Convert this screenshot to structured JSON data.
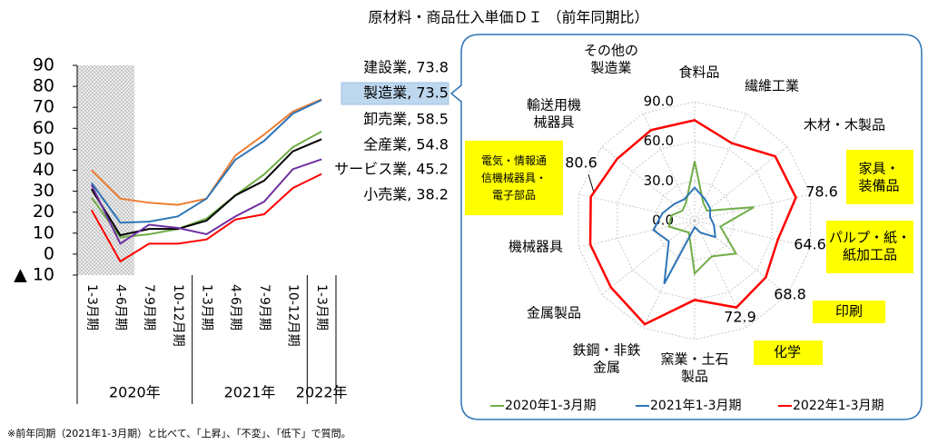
{
  "title": "原材料・商品仕入単価ＤＩ （前年同期比）",
  "footnote": "※前年同期（2021年1-3月期）と比べて、「上昇」、「不変」、「低下」で質問。",
  "chart_data": [
    {
      "type": "line",
      "categories": [
        "1-3月期",
        "4-6月期",
        "7-9月期",
        "10-12月期",
        "1-3月期",
        "4-6月期",
        "7-9月期",
        "10-12月期",
        "1-3月期"
      ],
      "groups": [
        {
          "label": "2020年",
          "start": 0,
          "end": 3
        },
        {
          "label": "2021年",
          "start": 4,
          "end": 7
        },
        {
          "label": "2022年",
          "start": 8,
          "end": 8
        }
      ],
      "ylim": [
        -10,
        90
      ],
      "yticks": [
        {
          "value": -10,
          "label": "▲ 10"
        },
        0,
        10,
        20,
        30,
        40,
        50,
        60,
        70,
        80,
        90
      ],
      "series": [
        {
          "name": "建設業",
          "color": "#ed7d31",
          "values": [
            40,
            26.5,
            24.5,
            23.5,
            26.5,
            47,
            57,
            68,
            73.8
          ],
          "value_labels": [
            null,
            null,
            null,
            null,
            null,
            null,
            null,
            null,
            "建設業, 73.8"
          ]
        },
        {
          "name": "製造業",
          "color": "#2e75b6",
          "values": [
            34,
            15,
            15.5,
            18,
            26.5,
            45,
            54,
            67,
            73.5
          ],
          "value_labels": [
            null,
            null,
            null,
            null,
            null,
            null,
            null,
            null,
            "製造業, 73.5"
          ]
        },
        {
          "name": "卸売業",
          "color": "#70ad47",
          "values": [
            27,
            8,
            9.5,
            12,
            17,
            28,
            38,
            51,
            58.5
          ],
          "value_labels": [
            null,
            null,
            null,
            null,
            null,
            null,
            null,
            null,
            "卸売業, 58.5"
          ]
        },
        {
          "name": "全産業",
          "color": "#000000",
          "values": [
            31,
            9,
            12,
            12,
            16,
            28,
            35,
            49,
            54.8
          ],
          "value_labels": [
            null,
            null,
            null,
            null,
            null,
            null,
            null,
            null,
            "全産業, 54.8"
          ]
        },
        {
          "name": "サービス業",
          "color": "#7030a0",
          "values": [
            33,
            5,
            14,
            12.5,
            9.5,
            18,
            25,
            40.5,
            45.2
          ],
          "value_labels": [
            null,
            null,
            null,
            null,
            null,
            null,
            null,
            null,
            "サービス業, 45.2"
          ]
        },
        {
          "name": "小売業",
          "color": "#ff0000",
          "values": [
            21,
            -3.5,
            5,
            5,
            7,
            16.5,
            19,
            31.5,
            38.2
          ],
          "value_labels": [
            null,
            null,
            null,
            null,
            null,
            null,
            null,
            null,
            "小売業, 38.2"
          ]
        }
      ]
    },
    {
      "type": "radar",
      "categories": [
        "食料品",
        "繊維工業",
        "木材・木製品",
        "家具・\n装備品",
        "パルプ・紙・\n紙加工品",
        "印刷",
        "化学",
        "窯業・土石\n製品",
        "鉄鋼・非鉄\n金属",
        "金属製品",
        "機械器具",
        "電気・情報通\n信機械器具・\n電子部品",
        "輸送用機\n械器具",
        "その他の\n製造業"
      ],
      "highlighted": [
        false,
        false,
        false,
        true,
        true,
        true,
        true,
        false,
        false,
        false,
        false,
        true,
        false,
        false
      ],
      "highlight_color": "#ffff00",
      "rlim": [
        0,
        90
      ],
      "rticks": [
        {
          "value": 0,
          "label": "0.0"
        },
        {
          "value": 30,
          "label": "30.0"
        },
        {
          "value": 60,
          "label": "60.0"
        },
        {
          "value": 90,
          "label": "90.0"
        }
      ],
      "series": [
        {
          "name": "2020年1-3月期",
          "color": "#70ad47",
          "values": [
            45,
            15,
            12,
            46,
            20,
            40,
            30,
            40,
            10,
            12,
            20,
            18,
            12,
            15
          ]
        },
        {
          "name": "2021年1-3月期",
          "color": "#2e75b6",
          "values": [
            25,
            18,
            15,
            12,
            15,
            20,
            10,
            5,
            53,
            25,
            32,
            25,
            20,
            18
          ]
        },
        {
          "name": "2022年1-3月期",
          "color": "#ff0000",
          "values": [
            76,
            65,
            78,
            78.6,
            64.6,
            68.8,
            72.9,
            60,
            87,
            81,
            81,
            80.6,
            75,
            76
          ],
          "value_labels": [
            null,
            null,
            null,
            "78.6",
            "64.6",
            "68.8",
            "72.9",
            null,
            null,
            null,
            null,
            "80.6",
            null,
            null
          ]
        }
      ]
    }
  ]
}
